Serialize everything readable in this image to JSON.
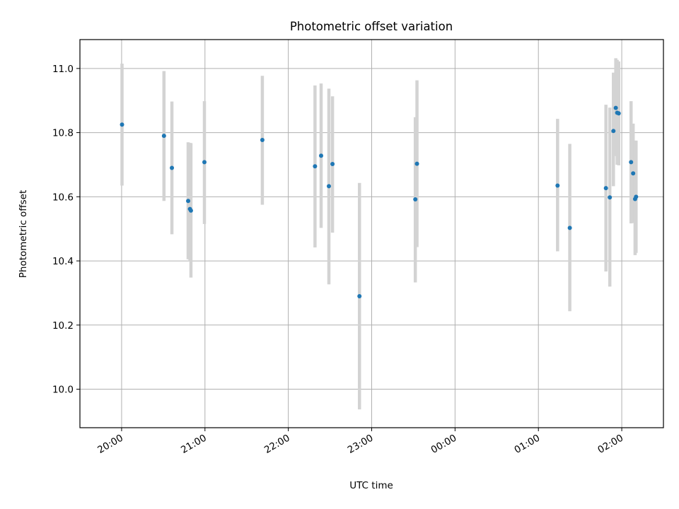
{
  "chart_data": {
    "type": "scatter",
    "title": "Photometric offset variation",
    "xlabel": "UTC time",
    "ylabel": "Photometric offset",
    "x_unit": "minutes relative to 20:00 UTC",
    "xlim": [
      -30,
      390
    ],
    "ylim": [
      9.88,
      11.09
    ],
    "grid": true,
    "x_ticks": [
      {
        "value": 0,
        "label": "20:00"
      },
      {
        "value": 60,
        "label": "21:00"
      },
      {
        "value": 120,
        "label": "22:00"
      },
      {
        "value": 180,
        "label": "23:00"
      },
      {
        "value": 240,
        "label": "00:00"
      },
      {
        "value": 300,
        "label": "01:00"
      },
      {
        "value": 360,
        "label": "02:00"
      }
    ],
    "y_ticks": [
      10.0,
      10.2,
      10.4,
      10.6,
      10.8,
      11.0
    ],
    "y_tick_labels": [
      "10.0",
      "10.2",
      "10.4",
      "10.6",
      "10.8",
      "11.0"
    ],
    "colors": {
      "points": "#1f77b4",
      "errorbars": "#d3d3d3",
      "grid": "#b0b0b0"
    },
    "points": [
      {
        "x": 0.3,
        "y": 10.825,
        "ylo": 10.635,
        "yhi": 11.015
      },
      {
        "x": 30.5,
        "y": 10.79,
        "ylo": 10.587,
        "yhi": 10.992
      },
      {
        "x": 36.2,
        "y": 10.69,
        "ylo": 10.483,
        "yhi": 10.897
      },
      {
        "x": 47.9,
        "y": 10.587,
        "ylo": 10.405,
        "yhi": 10.77
      },
      {
        "x": 49.2,
        "y": 10.562,
        "ylo": 10.4,
        "yhi": 10.768
      },
      {
        "x": 49.9,
        "y": 10.557,
        "ylo": 10.348,
        "yhi": 10.767
      },
      {
        "x": 59.6,
        "y": 10.708,
        "ylo": 10.515,
        "yhi": 10.898
      },
      {
        "x": 101.3,
        "y": 10.777,
        "ylo": 10.575,
        "yhi": 10.977
      },
      {
        "x": 139.2,
        "y": 10.695,
        "ylo": 10.442,
        "yhi": 10.947
      },
      {
        "x": 143.6,
        "y": 10.728,
        "ylo": 10.503,
        "yhi": 10.953
      },
      {
        "x": 149.2,
        "y": 10.633,
        "ylo": 10.327,
        "yhi": 10.937
      },
      {
        "x": 151.8,
        "y": 10.702,
        "ylo": 10.488,
        "yhi": 10.913
      },
      {
        "x": 171.2,
        "y": 10.29,
        "ylo": 9.937,
        "yhi": 10.643
      },
      {
        "x": 211.4,
        "y": 10.592,
        "ylo": 10.333,
        "yhi": 10.848
      },
      {
        "x": 212.6,
        "y": 10.703,
        "ylo": 10.443,
        "yhi": 10.963
      },
      {
        "x": 313.8,
        "y": 10.635,
        "ylo": 10.43,
        "yhi": 10.843
      },
      {
        "x": 322.6,
        "y": 10.503,
        "ylo": 10.243,
        "yhi": 10.765
      },
      {
        "x": 348.6,
        "y": 10.627,
        "ylo": 10.367,
        "yhi": 10.887
      },
      {
        "x": 351.4,
        "y": 10.598,
        "ylo": 10.32,
        "yhi": 10.878
      },
      {
        "x": 354.0,
        "y": 10.805,
        "ylo": 10.633,
        "yhi": 10.987
      },
      {
        "x": 355.7,
        "y": 10.877,
        "ylo": 10.727,
        "yhi": 11.032
      },
      {
        "x": 356.7,
        "y": 10.862,
        "ylo": 10.7,
        "yhi": 11.027
      },
      {
        "x": 357.8,
        "y": 10.86,
        "ylo": 10.698,
        "yhi": 11.022
      },
      {
        "x": 366.7,
        "y": 10.708,
        "ylo": 10.517,
        "yhi": 10.898
      },
      {
        "x": 368.2,
        "y": 10.673,
        "ylo": 10.518,
        "yhi": 10.828
      },
      {
        "x": 369.6,
        "y": 10.593,
        "ylo": 10.418,
        "yhi": 10.775
      },
      {
        "x": 370.3,
        "y": 10.6,
        "ylo": 10.425,
        "yhi": 10.775
      }
    ]
  }
}
